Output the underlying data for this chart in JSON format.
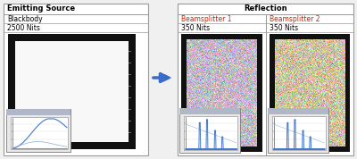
{
  "title_emitting": "Emitting Source",
  "label_type": "Blackbody",
  "label_nits_emitting": "2500 Nits",
  "title_reflection": "Reflection",
  "label_bs1": "Beamsplitter 1",
  "label_bs2": "Beamsplitter 2",
  "label_nits_bs1": "350 Nits",
  "label_nits_bs2": "350 Nits",
  "bg_color": "#f0f0f0",
  "arrow_color": "#3a6bc8",
  "border_color": "#999999",
  "bs1_label_color": "#cc2200",
  "bs2_label_color": "#cc2200",
  "emitting_img_color": [
    245,
    245,
    248
  ],
  "bs1_noise_tint": [
    195,
    185,
    198
  ],
  "bs2_noise_tint": [
    205,
    195,
    160
  ]
}
